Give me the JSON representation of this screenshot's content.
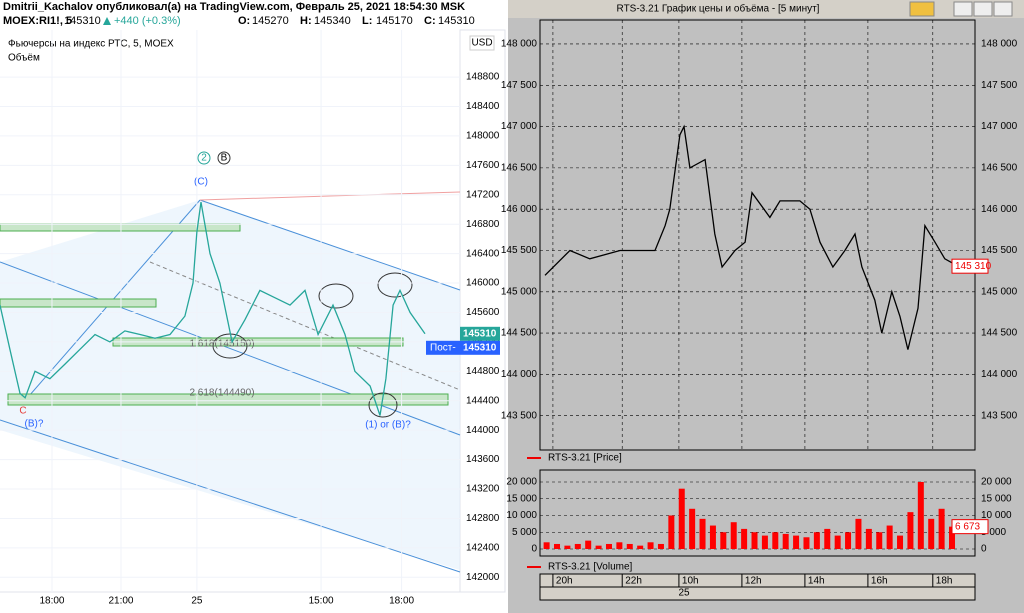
{
  "left": {
    "header": {
      "author_line": "Dmitrii_Kachalov опубликовал(а) на TradingView.com, Февраль 25, 2021 18:54:30 MSK",
      "symbol": "MOEX:RI1!, 5",
      "last": "145310",
      "change": "+440 (+0.3%)",
      "ohlc": [
        {
          "key": "O:",
          "value": "145270"
        },
        {
          "key": "H:",
          "value": "145340"
        },
        {
          "key": "L:",
          "value": "145170"
        },
        {
          "key": "C:",
          "value": "145310"
        }
      ]
    },
    "chart": {
      "type": "line",
      "title": "Фьючерсы на индекс РТС, 5, MOEX",
      "volume_label": "Объём",
      "currency": "USD",
      "color": "#26a69a",
      "x": [
        -2.26,
        -1.83,
        -1.39,
        -1.17,
        -0.74,
        -0.09,
        0.57,
        1.22,
        1.87,
        2.52,
        3.17,
        3.83,
        4.48,
        5.13,
        5.78,
        6.13,
        6.3,
        6.48,
        6.87,
        7.3,
        7.83,
        8.39,
        9.04,
        9.7,
        10.35,
        11.0,
        11.57,
        12.22,
        12.74,
        13.17,
        13.83,
        14.26,
        14.52,
        14.83,
        15.13,
        15.57,
        16.22
      ],
      "values": [
        145700,
        145100,
        144500,
        144440,
        144800,
        144700,
        144900,
        145100,
        145300,
        145200,
        145350,
        145300,
        145250,
        145300,
        145550,
        146000,
        146700,
        147100,
        146400,
        146000,
        145200,
        145500,
        145900,
        145800,
        145700,
        145900,
        145300,
        145700,
        145300,
        144800,
        144600,
        144200,
        144700,
        145700,
        145900,
        145600,
        145310
      ],
      "xlim": [
        -2.26,
        17.74
      ],
      "xticks": [
        {
          "value": 0,
          "label": "18:00"
        },
        {
          "value": 3,
          "label": "21:00"
        },
        {
          "value": 6.3,
          "label": "25"
        },
        {
          "value": 11.7,
          "label": "15:00"
        },
        {
          "value": 15.2,
          "label": "18:00"
        }
      ],
      "ylim": [
        141800,
        149440
      ],
      "yticks": [
        142000,
        142400,
        142800,
        143200,
        143600,
        144000,
        144400,
        144800,
        145200,
        145600,
        146000,
        146400,
        146800,
        147200,
        147600,
        148000,
        148400,
        148800
      ],
      "price_label": 145310,
      "post_label": "Пост-",
      "post_price": 145310,
      "annotations": [
        "(C)",
        "2",
        "B",
        "C",
        "(B)?",
        "(1) or (B)?",
        "1.618(145150)",
        "2.618(144490)"
      ]
    }
  },
  "right": {
    "title": "RTS-3.21 График цены и объёма - [5 минут]",
    "price_chart": {
      "type": "line",
      "legend": "RTS-3.21 [Price]",
      "color": "#000000",
      "x": [
        -0.25,
        0.54,
        1.17,
        2.13,
        3.24,
        3.56,
        3.71,
        4.03,
        4.16,
        4.35,
        4.83,
        5.14,
        5.37,
        5.78,
        6.1,
        6.32,
        6.89,
        7.21,
        7.84,
        8.16,
        8.48,
        8.89,
        9.27,
        9.59,
        9.81,
        10.22,
        10.44,
        10.76,
        11.02,
        11.27,
        11.59,
        11.81,
        12.13,
        12.44,
        12.86
      ],
      "values": [
        145200,
        145500,
        145400,
        145500,
        145500,
        145800,
        146000,
        146900,
        147000,
        146500,
        146600,
        145700,
        145300,
        145500,
        145600,
        146200,
        145900,
        146100,
        146100,
        146000,
        145600,
        145300,
        145500,
        145700,
        145300,
        144900,
        144500,
        145000,
        144700,
        144300,
        144800,
        145800,
        145600,
        145400,
        145310
      ],
      "ylim": [
        143085,
        148290
      ],
      "yticks": [
        {
          "value": 143500,
          "label": "143 500"
        },
        {
          "value": 144000,
          "label": "144 000"
        },
        {
          "value": 144500,
          "label": "144 500"
        },
        {
          "value": 145000,
          "label": "145 000"
        },
        {
          "value": 145500,
          "label": "145 500"
        },
        {
          "value": 146000,
          "label": "146 000"
        },
        {
          "value": 146500,
          "label": "146 500"
        },
        {
          "value": 147000,
          "label": "147 000"
        },
        {
          "value": 147500,
          "label": "147 500"
        },
        {
          "value": 148000,
          "label": "148 000"
        }
      ],
      "last": {
        "value": 145310,
        "label": "145 310"
      }
    },
    "volume_chart": {
      "type": "bar",
      "legend": "RTS-3.21 [Volume]",
      "color": "#ff0000",
      "x": [
        -0.2,
        0.13,
        0.46,
        0.79,
        1.12,
        1.45,
        1.78,
        2.11,
        2.44,
        2.77,
        3.1,
        3.43,
        3.76,
        4.09,
        4.42,
        4.75,
        5.08,
        5.41,
        5.74,
        6.07,
        6.4,
        6.73,
        7.06,
        7.39,
        7.72,
        8.05,
        8.38,
        8.71,
        9.04,
        9.37,
        9.7,
        10.03,
        10.36,
        10.69,
        11.02,
        11.35,
        11.68,
        12.01,
        12.34,
        12.67
      ],
      "values": [
        2000,
        1500,
        1000,
        1500,
        2500,
        1000,
        1500,
        2000,
        1500,
        1000,
        2000,
        1500,
        10000,
        18000,
        12000,
        9000,
        7000,
        5000,
        8000,
        6000,
        5000,
        4000,
        5000,
        4500,
        4000,
        3500,
        5000,
        6000,
        4000,
        5000,
        9000,
        6000,
        5000,
        7000,
        4000,
        11000,
        20000,
        9000,
        12000,
        6673
      ],
      "ylim": [
        -2090,
        23580
      ],
      "yticks": [
        0,
        {
          "value": 5000,
          "label": "5 000"
        },
        {
          "value": 10000,
          "label": "10 000"
        },
        {
          "value": 15000,
          "label": "15 000"
        },
        {
          "value": 20000,
          "label": "20 000"
        }
      ],
      "last": {
        "value": 6673,
        "label": "6 673"
      }
    },
    "time_axis": {
      "xlim": [
        -0.41,
        13.4
      ],
      "xticks": [
        {
          "value": 0,
          "label": "20h"
        },
        {
          "value": 2.2,
          "label": "22h"
        },
        {
          "value": 4.0,
          "label": "10h"
        },
        {
          "value": 6.0,
          "label": "12h"
        },
        {
          "value": 8.0,
          "label": "14h"
        },
        {
          "value": 10.0,
          "label": "16h"
        },
        {
          "value": 12.06,
          "label": "18h"
        }
      ],
      "date_label": "25"
    }
  }
}
